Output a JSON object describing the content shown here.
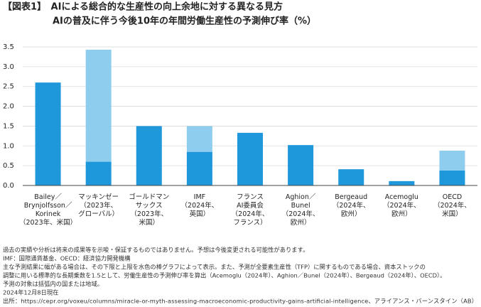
{
  "chart_data": {
    "type": "stacked_bar",
    "title": "【図表1】　AIによる総合的な生産性の向上余地に対する異なる見方",
    "subtitle": "AIの普及に伴う今後10年の年間労働生産性の予測伸び率（%）",
    "categories": [
      "Bailey／\nBrynjolfsson／\nKorinek\n（2023年、米国）",
      "マッキンゼー\n（2023年、\nグローバル）",
      "ゴールドマン\nサックス\n（2023年、\n米国）",
      "IMF\n（2024年、\n英国）",
      "フランス\nAI委員会\n（2024年、\nフランス）",
      "Aghion／\nBunel\n（2024年、\n欧州）",
      "Bergeaud\n（2024年、\n欧州）",
      "Acemoglu\n（2024年、\n欧州）",
      "OECD\n（2024年、\n米国）"
    ],
    "series": [
      {
        "color": "#1f97db",
        "values": [
          2.6,
          0.6,
          1.5,
          0.85,
          1.33,
          1.02,
          0.41,
          0.11,
          0.38
        ]
      },
      {
        "color": "#8fcdef",
        "values": [
          null,
          2.83,
          null,
          0.65,
          null,
          null,
          null,
          null,
          0.5
        ]
      }
    ],
    "ylim": [
      0,
      3.5
    ],
    "yticks": [
      {
        "value": 0,
        "label": "0.0"
      },
      {
        "value": 0.5,
        "label": "0.5"
      },
      {
        "value": 1,
        "label": "1.0"
      },
      {
        "value": 1.5,
        "label": "1.5"
      },
      {
        "value": 2,
        "label": "2.0"
      },
      {
        "value": 2.5,
        "label": "2.5"
      },
      {
        "value": 3,
        "label": "3.0"
      },
      {
        "value": 3.5,
        "label": "3.5"
      }
    ],
    "grid": true,
    "notes": [
      "過去の実績や分析は将来の成果等を示唆・保証するものではありません。予想は今後変更される可能性があります。",
      "IMF：国際通貨基金、OECD：経済協力開発機構",
      "主な予測結果に幅がある場合は、その下限と上限を水色の棒グラフによって表示。また、予測が全要素生産性（TFP）に関するものである場合、資本ストックの",
      "調整に用いる標準的な長期乗数を1.5として、労働生産性の予測伸び率を算出（Acemoglu（2024年）、Aghion／Bunel（2024年）、Bergeaud（2024年）、OECD）。",
      "予測の対象は括弧内の国または地域。",
      "2024年12月8日現在",
      "出所：https://cepr.org/voxeu/columns/miracle-or-myth-assessing-macroeconomic-productivity-gains-artificial-intelligence、アライアンス・バーンスタイン（AB）"
    ]
  }
}
